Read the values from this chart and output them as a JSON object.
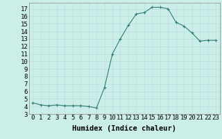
{
  "x": [
    0,
    1,
    2,
    3,
    4,
    5,
    6,
    7,
    8,
    9,
    10,
    11,
    12,
    13,
    14,
    15,
    16,
    17,
    18,
    19,
    20,
    21,
    22,
    23
  ],
  "y": [
    4.5,
    4.2,
    4.1,
    4.2,
    4.1,
    4.1,
    4.1,
    4.0,
    3.8,
    6.5,
    11.0,
    13.0,
    14.8,
    16.3,
    16.5,
    17.2,
    17.2,
    17.0,
    15.2,
    14.7,
    13.8,
    12.7,
    12.8,
    12.8
  ],
  "line_color": "#2e7d6e",
  "marker": "+",
  "marker_color": "#2e7d6e",
  "bg_color": "#cceee8",
  "grid_color": "#bbdddd",
  "xlabel": "Humidex (Indice chaleur)",
  "xlim": [
    -0.5,
    23.5
  ],
  "ylim": [
    3,
    17.8
  ],
  "xticks": [
    0,
    1,
    2,
    3,
    4,
    5,
    6,
    7,
    8,
    9,
    10,
    11,
    12,
    13,
    14,
    15,
    16,
    17,
    18,
    19,
    20,
    21,
    22,
    23
  ],
  "yticks": [
    3,
    4,
    5,
    6,
    7,
    8,
    9,
    10,
    11,
    12,
    13,
    14,
    15,
    16,
    17
  ],
  "tick_fontsize": 6.5,
  "xlabel_fontsize": 7.5
}
